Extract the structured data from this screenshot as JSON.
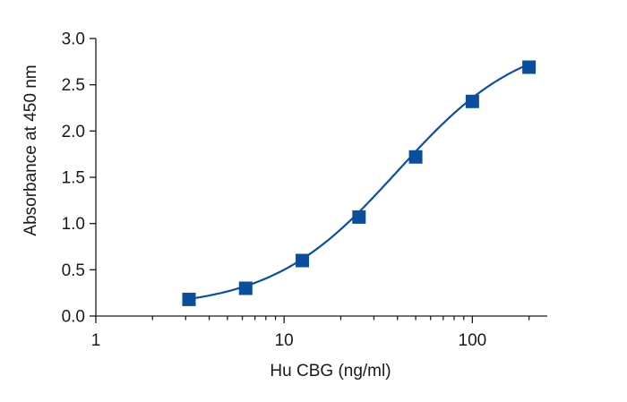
{
  "chart_data": {
    "type": "scatter",
    "title": "",
    "xlabel": "Hu CBG (ng/ml)",
    "ylabel": "Absorbance at 450 nm",
    "x_scale": "log",
    "xlim": [
      1,
      250
    ],
    "ylim": [
      0,
      3.0
    ],
    "x_ticks": [
      1,
      10,
      100
    ],
    "x_tick_labels": [
      "1",
      "10",
      "100"
    ],
    "y_ticks": [
      0,
      0.5,
      1.0,
      1.5,
      2.0,
      2.5,
      3.0
    ],
    "y_tick_labels": [
      "0.0",
      "0.5",
      "1.0",
      "1.5",
      "2.0",
      "2.5",
      "3.0"
    ],
    "grid": false,
    "legend": "none",
    "series": [
      {
        "marker": "square",
        "color": "#0b4f9c",
        "x": [
          3.125,
          6.25,
          12.5,
          25,
          50,
          100,
          200
        ],
        "y": [
          0.18,
          0.3,
          0.6,
          1.07,
          1.72,
          2.32,
          2.69
        ]
      }
    ],
    "fit_curve": {
      "type": "4PL",
      "color": "#0b4f9c",
      "bottom": 0.08,
      "top": 3.05,
      "ec50": 40,
      "hill": 1.3
    }
  }
}
